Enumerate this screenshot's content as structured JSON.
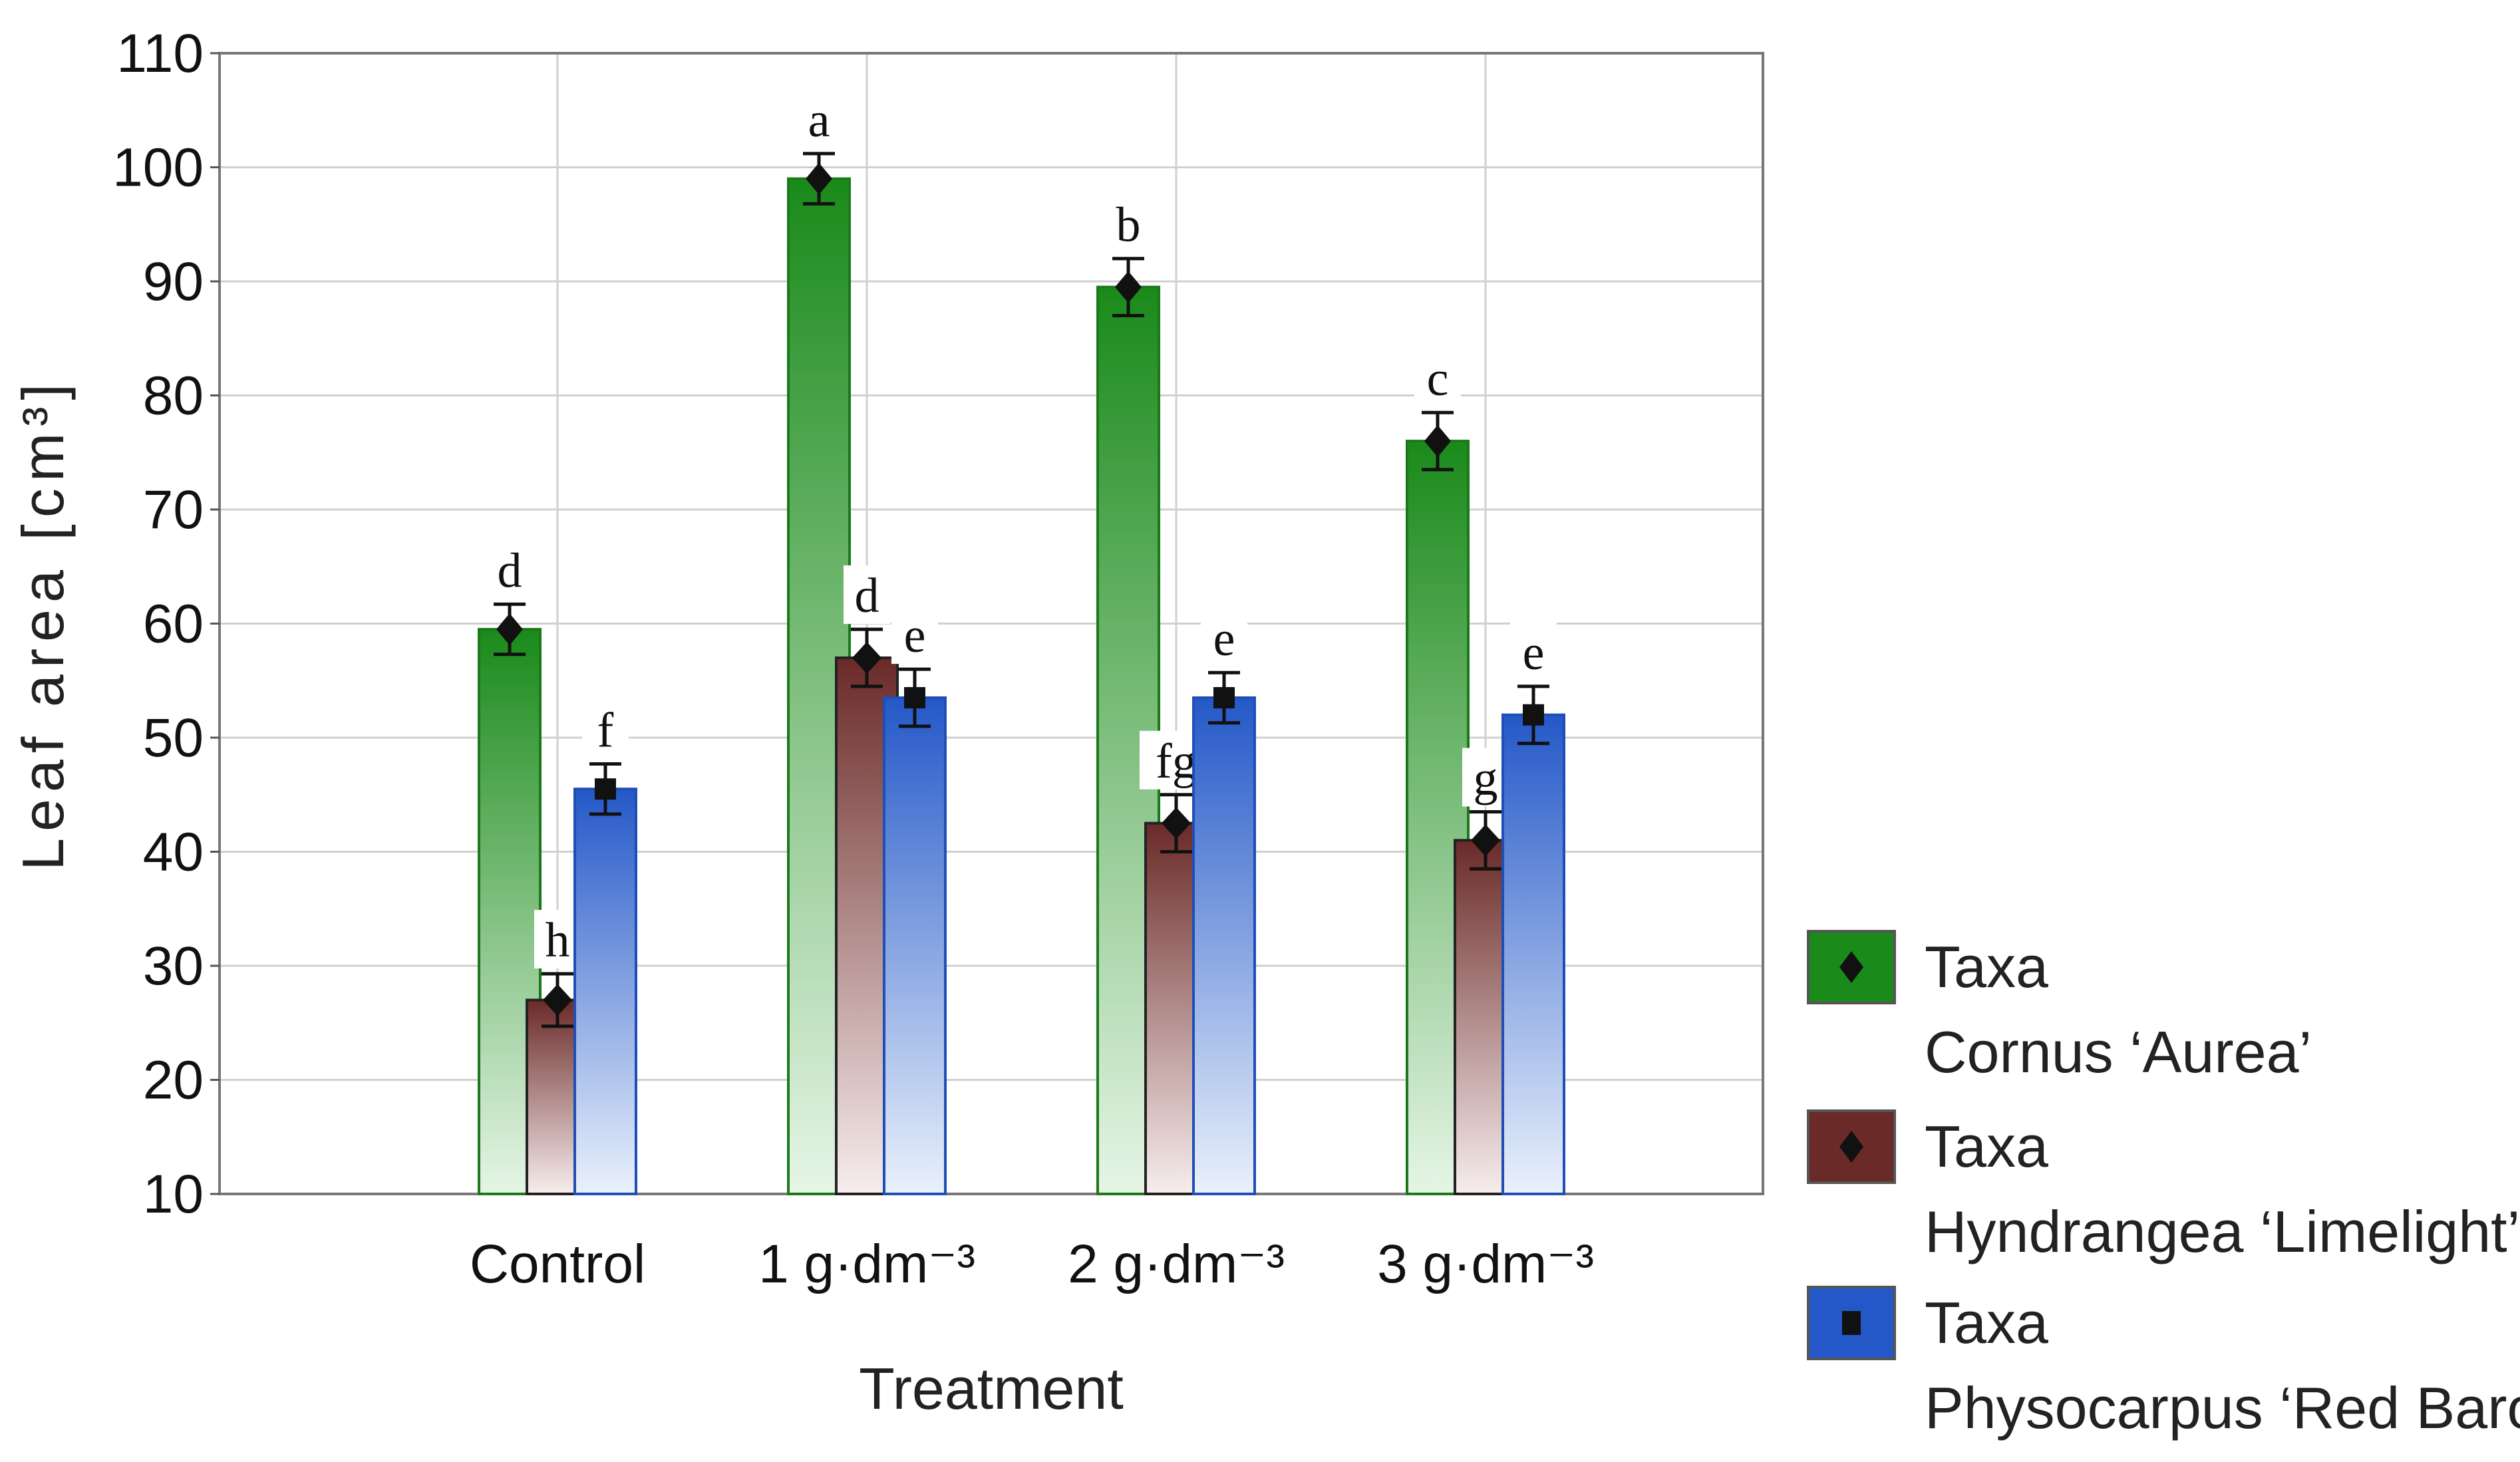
{
  "chart_data": {
    "type": "bar",
    "title": "",
    "xlabel": "Treatment",
    "ylabel": "Leaf area  [cm³]",
    "ylim": [
      10,
      110
    ],
    "yticks": [
      10,
      20,
      30,
      40,
      50,
      60,
      70,
      80,
      90,
      100,
      110
    ],
    "grid": true,
    "categories": [
      "Control",
      "1 g·dm⁻³",
      "2 g·dm⁻³",
      "3 g·dm⁻³"
    ],
    "series": [
      {
        "name": "Cornus ‘Aurea’",
        "legend_title": "Taxa",
        "marker": "circle",
        "color_dark": "#1a8a1a",
        "color_light": "#e6f5e6",
        "stroke": "#1a7a1a",
        "values": [
          59.5,
          99,
          89.5,
          76
        ],
        "errors": [
          2.2,
          2.2,
          2.5,
          2.5
        ],
        "letters": [
          "d",
          "a",
          "b",
          "c"
        ]
      },
      {
        "name": "Hyndrangea ‘Limelight’",
        "legend_title": "Taxa",
        "marker": "diamond",
        "color_dark": "#6a2a28",
        "color_light": "#f7eded",
        "stroke": "#222222",
        "values": [
          27,
          57,
          42.5,
          41
        ],
        "errors": [
          2.3,
          2.5,
          2.5,
          2.5
        ],
        "letters": [
          "h",
          "d",
          "fg",
          "g"
        ]
      },
      {
        "name": "Physocarpus ‘Red Baron’",
        "legend_title": "Taxa",
        "marker": "square",
        "color_dark": "#2458c8",
        "color_light": "#eaf1fb",
        "stroke": "#1f4fb5",
        "values": [
          45.5,
          53.5,
          53.5,
          52
        ],
        "errors": [
          2.2,
          2.5,
          2.2,
          2.5
        ],
        "letters": [
          "f",
          "e",
          "e",
          "e"
        ]
      }
    ],
    "legend_position": "bottom-right"
  }
}
